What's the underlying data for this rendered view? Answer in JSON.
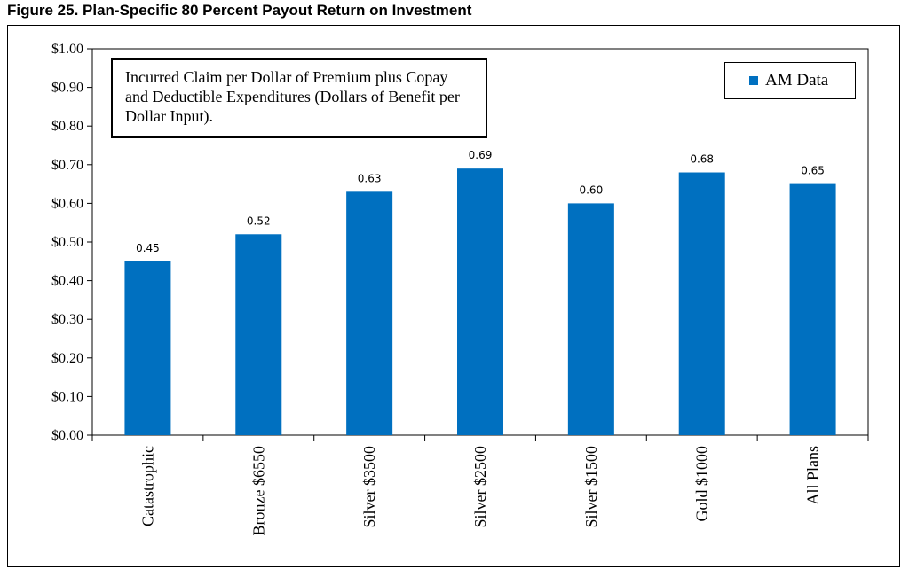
{
  "figure_title": "Figure 25.  Plan-Specific 80 Percent Payout Return on Investment",
  "annotation": "Incurred Claim per Dollar of Premium plus Copay and Deductible Expenditures (Dollars of Benefit per Dollar Input).",
  "colors": {
    "bar": "#0070c0"
  },
  "chart_data": {
    "type": "bar",
    "categories": [
      "Catastrophic",
      "Bronze $6550",
      "Silver $3500",
      "Silver $2500",
      "Silver $1500",
      "Gold $1000",
      "All Plans"
    ],
    "series": [
      {
        "name": "AM Data",
        "values": [
          0.45,
          0.52,
          0.63,
          0.69,
          0.6,
          0.68,
          0.65
        ]
      }
    ],
    "data_labels": [
      "0.45",
      "0.52",
      "0.63",
      "0.69",
      "0.60",
      "0.68",
      "0.65"
    ],
    "y_ticks": [
      "$0.00",
      "$0.10",
      "$0.20",
      "$0.30",
      "$0.40",
      "$0.50",
      "$0.60",
      "$0.70",
      "$0.80",
      "$0.90",
      "$1.00"
    ],
    "ylim": [
      0,
      1.0
    ],
    "legend_position": "top-right",
    "grid": false
  }
}
